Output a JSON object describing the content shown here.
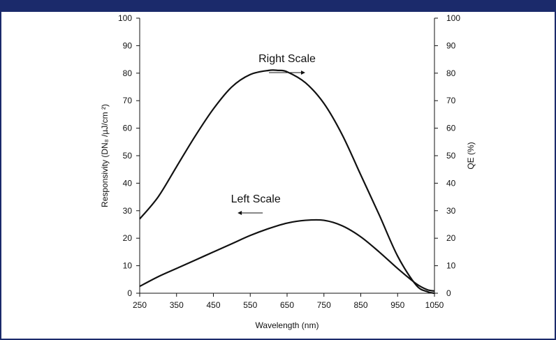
{
  "colors": {
    "band": "#1b2a6b",
    "ink": "#111111"
  },
  "chart_data": {
    "type": "line",
    "xlabel": "Wavelength (nm)",
    "ylabel_left": "Responsivity (DN₈ /µJ/cm ²)",
    "ylabel_right": "QE (%)",
    "xlim": [
      250,
      1050
    ],
    "ylim_left": [
      0,
      100
    ],
    "ylim_right": [
      0,
      100
    ],
    "x_ticks": [
      250,
      350,
      450,
      550,
      650,
      750,
      850,
      950,
      1050
    ],
    "y_ticks_left": [
      0,
      10,
      20,
      30,
      40,
      50,
      60,
      70,
      80,
      90,
      100
    ],
    "y_ticks_right": [
      0,
      10,
      20,
      30,
      40,
      50,
      60,
      70,
      80,
      90,
      100
    ],
    "grid": false,
    "series": [
      {
        "axis": "right",
        "x": [
          250,
          300,
          350,
          400,
          450,
          500,
          550,
          600,
          625,
          650,
          700,
          750,
          800,
          850,
          900,
          950,
          1000,
          1030,
          1050
        ],
        "values": [
          27,
          35,
          46,
          57,
          67,
          75,
          79.5,
          81,
          81,
          80.5,
          76.5,
          69,
          57.5,
          43,
          28.5,
          13.5,
          3,
          0.6,
          0
        ]
      },
      {
        "axis": "left",
        "x": [
          250,
          300,
          350,
          400,
          450,
          500,
          550,
          600,
          650,
          700,
          750,
          800,
          850,
          900,
          950,
          1000,
          1030,
          1050
        ],
        "values": [
          2.5,
          6,
          9,
          12,
          15,
          18,
          21,
          23.5,
          25.5,
          26.5,
          26.5,
          24.5,
          20.5,
          15,
          9,
          3.5,
          1.3,
          0.8
        ]
      }
    ],
    "annotations": [
      {
        "text": "Right Scale",
        "x": 650,
        "y": 84,
        "arrow": "right",
        "axis": "left"
      },
      {
        "text": "Left Scale",
        "x": 565,
        "y": 33,
        "arrow": "left",
        "axis": "left"
      }
    ]
  }
}
